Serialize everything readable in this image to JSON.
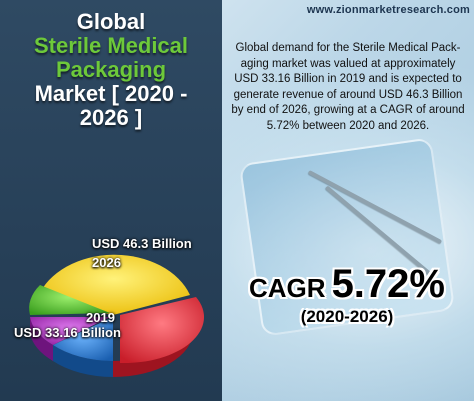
{
  "header": {
    "title_line1": "Global",
    "title_line2": "Sterile Medical",
    "title_line3": "Packaging",
    "title_line4": "Market [ 2020 -",
    "title_line5": "2026 ]",
    "website": "www.zionmarketresearch.com"
  },
  "description": "Global demand for the Sterile Medical Pack-aging market was valued at approximately USD 33.16 Billion in 2019 and is expected to generate revenue of around USD 46.3 Billion by end of 2026, growing at a CAGR of around 5.72% between 2020 and 2026.",
  "cagr": {
    "label": "CAGR",
    "value": "5.72%",
    "period": "(2020-2026)"
  },
  "pie": {
    "label_2026_value": "USD 46.3 Billion",
    "label_2026_year": "2026",
    "label_2019_year": "2019",
    "label_2019_value": "USD 33.16 Billion",
    "colors": {
      "yellow": "#f6d20f",
      "red": "#e8353f",
      "blue": "#2a7fd3",
      "purple": "#b62fc2",
      "green": "#5fc93a"
    }
  }
}
